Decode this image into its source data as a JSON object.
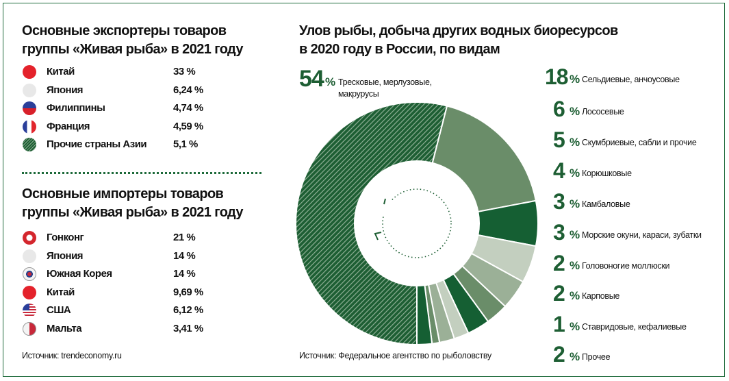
{
  "exporters": {
    "title_line1": "Основные экспортеры товаров",
    "title_line2": "группы «Живая рыба» в 2021 году",
    "items": [
      {
        "flag": "china-flag-icon",
        "label": "Китай",
        "value": "33 %"
      },
      {
        "flag": "japan-flag-icon",
        "label": "Япония",
        "value": "6,24 %"
      },
      {
        "flag": "philippines-flag-icon",
        "label": "Филиппины",
        "value": "4,74 %"
      },
      {
        "flag": "france-flag-icon",
        "label": "Франция",
        "value": "4,59 %"
      },
      {
        "flag": "hatched-circle-icon",
        "label": "Прочие страны Азии",
        "value": "5,1 %"
      }
    ]
  },
  "importers": {
    "title_line1": "Основные импортеры товаров",
    "title_line2": "группы «Живая рыба» в 2021 году",
    "items": [
      {
        "flag": "hong-kong-flag-icon",
        "label": "Гонконг",
        "value": "21 %"
      },
      {
        "flag": "japan-flag-icon",
        "label": "Япония",
        "value": "14 %"
      },
      {
        "flag": "south-korea-flag-icon",
        "label": "Южная Корея",
        "value": "14 %"
      },
      {
        "flag": "china-flag-icon",
        "label": "Китай",
        "value": "9,69 %"
      },
      {
        "flag": "usa-flag-icon",
        "label": "США",
        "value": "6,12 %"
      },
      {
        "flag": "malta-flag-icon",
        "label": "Мальта",
        "value": "3,41 %"
      }
    ],
    "source": "Источник:  trendeconomy.ru"
  },
  "chart_data": {
    "type": "pie",
    "title": "Улов рыбы, добыча других водных биоресурсов в 2020 году в России, по видам",
    "title_line1": "Улов рыбы, добыча других водных биоресурсов",
    "title_line2": "в 2020 году в России, по видам",
    "unit": "%",
    "donut": true,
    "main": {
      "value": 54,
      "label": "Тресковые, мерлузовые, макрурусы",
      "color": "hatched dark green"
    },
    "slices": [
      {
        "value": 18,
        "label": "Сельдиевые, анчоусовые",
        "color": "#6a8d69"
      },
      {
        "value": 6,
        "label": "Лососевые",
        "color": "#155f33"
      },
      {
        "value": 5,
        "label": "Скумбриевые, сабли и прочие",
        "color": "#c3cfbf"
      },
      {
        "value": 4,
        "label": "Корюшковые",
        "color": "#9bb097"
      },
      {
        "value": 3,
        "label": "Камбаловые",
        "color": "#6a8d69"
      },
      {
        "value": 3,
        "label": "Морские окуни, караси, зубатки",
        "color": "#155f33"
      },
      {
        "value": 2,
        "label": "Головоногие моллюски",
        "color": "#c3cfbf"
      },
      {
        "value": 2,
        "label": "Карповые",
        "color": "#9bb097"
      },
      {
        "value": 1,
        "label": "Ставридовые, кефалиевые",
        "color": "#6a8d69"
      },
      {
        "value": 2,
        "label": "Прочее",
        "color": "#155f33"
      }
    ],
    "source": "Источник: Федеральное агентство по рыболовству"
  },
  "colors": {
    "accent": "#1d5e33",
    "frame": "#1d6a3a"
  }
}
